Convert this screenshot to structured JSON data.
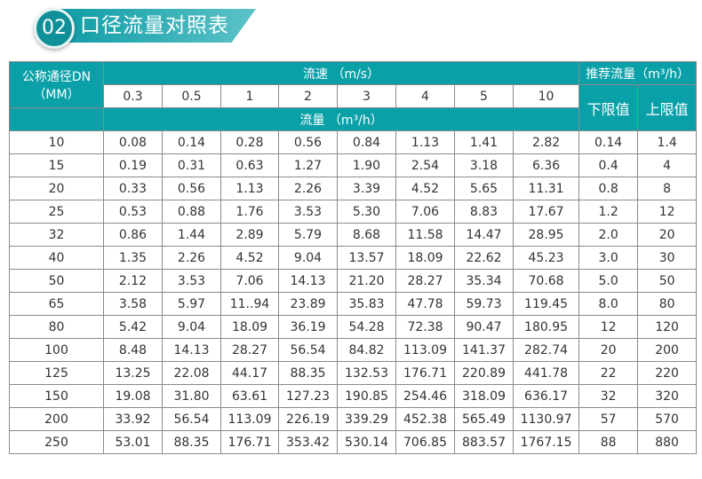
{
  "header": {
    "number": "02",
    "title": "口径流量对照表"
  },
  "colors": {
    "accent": "#0aa0a8"
  },
  "table": {
    "dn_header": [
      "公称通径DN",
      "（MM）"
    ],
    "velocity_header": "流速 （m/s）",
    "velocities": [
      "0.3",
      "0.5",
      "1",
      "2",
      "3",
      "4",
      "5",
      "10"
    ],
    "flow_header": "流量 （m³/h）",
    "recommended_header": "推荐流量（m³/h）",
    "lower_label": "下限值",
    "upper_label": "上限值",
    "rows": [
      [
        "10",
        "0.08",
        "0.14",
        "0.28",
        "0.56",
        "0.84",
        "1.13",
        "1.41",
        "2.82",
        "0.14",
        "1.4"
      ],
      [
        "15",
        "0.19",
        "0.31",
        "0.63",
        "1.27",
        "1.90",
        "2.54",
        "3.18",
        "6.36",
        "0.4",
        "4"
      ],
      [
        "20",
        "0.33",
        "0.56",
        "1.13",
        "2.26",
        "3.39",
        "4.52",
        "5.65",
        "11.31",
        "0.8",
        "8"
      ],
      [
        "25",
        "0.53",
        "0.88",
        "1.76",
        "3.53",
        "5.30",
        "7.06",
        "8.83",
        "17.67",
        "1.2",
        "12"
      ],
      [
        "32",
        "0.86",
        "1.44",
        "2.89",
        "5.79",
        "8.68",
        "11.58",
        "14.47",
        "28.95",
        "2.0",
        "20"
      ],
      [
        "40",
        "1.35",
        "2.26",
        "4.52",
        "9.04",
        "13.57",
        "18.09",
        "22.62",
        "45.23",
        "3.0",
        "30"
      ],
      [
        "50",
        "2.12",
        "3.53",
        "7.06",
        "14.13",
        "21.20",
        "28.27",
        "35.34",
        "70.68",
        "5.0",
        "50"
      ],
      [
        "65",
        "3.58",
        "5.97",
        "11..94",
        "23.89",
        "35.83",
        "47.78",
        "59.73",
        "119.45",
        "8.0",
        "80"
      ],
      [
        "80",
        "5.42",
        "9.04",
        "18.09",
        "36.19",
        "54.28",
        "72.38",
        "90.47",
        "180.95",
        "12",
        "120"
      ],
      [
        "100",
        "8.48",
        "14.13",
        "28.27",
        "56.54",
        "84.82",
        "113.09",
        "141.37",
        "282.74",
        "20",
        "200"
      ],
      [
        "125",
        "13.25",
        "22.08",
        "44.17",
        "88.35",
        "132.53",
        "176.71",
        "220.89",
        "441.78",
        "22",
        "220"
      ],
      [
        "150",
        "19.08",
        "31.80",
        "63.61",
        "127.23",
        "190.85",
        "254.46",
        "318.09",
        "636.17",
        "32",
        "320"
      ],
      [
        "200",
        "33.92",
        "56.54",
        "113.09",
        "226.19",
        "339.29",
        "452.38",
        "565.49",
        "1130.97",
        "57",
        "570"
      ],
      [
        "250",
        "53.01",
        "88.35",
        "176.71",
        "353.42",
        "530.14",
        "706.85",
        "883.57",
        "1767.15",
        "88",
        "880"
      ]
    ]
  }
}
